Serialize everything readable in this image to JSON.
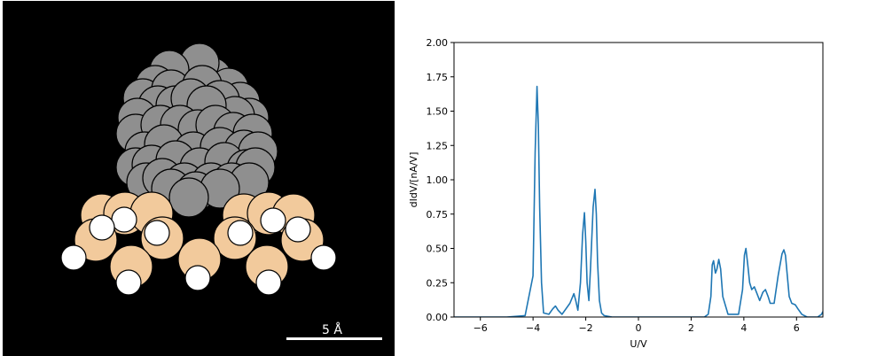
{
  "molecule": {
    "scale_label": "5 Å",
    "colors": {
      "carbon": "#8f8f8f",
      "nitrogen": "#f2ca9c",
      "hydrogen": "#ffffff",
      "background": "#000000",
      "outline": "#000000"
    }
  },
  "chart_data": {
    "type": "line",
    "title": "",
    "xlabel": "U/V",
    "ylabel": "dIdV/[nA/V]",
    "xlim": [
      -7,
      7
    ],
    "ylim": [
      0,
      2.0
    ],
    "xticks": [
      -6,
      -4,
      -2,
      0,
      2,
      4,
      6
    ],
    "xtick_labels": [
      "−6",
      "−4",
      "−2",
      "0",
      "2",
      "4",
      "6"
    ],
    "yticks": [
      0,
      0.25,
      0.5,
      0.75,
      1.0,
      1.25,
      1.5,
      1.75,
      2.0
    ],
    "ytick_labels": [
      "0.00",
      "0.25",
      "0.50",
      "0.75",
      "1.00",
      "1.25",
      "1.50",
      "1.75",
      "2.00"
    ],
    "grid": false,
    "line_color": "#1f77b4",
    "x": [
      -7.0,
      -6.0,
      -5.0,
      -4.3,
      -4.0,
      -3.92,
      -3.85,
      -3.8,
      -3.75,
      -3.68,
      -3.6,
      -3.4,
      -3.25,
      -3.15,
      -3.05,
      -2.9,
      -2.6,
      -2.45,
      -2.38,
      -2.3,
      -2.2,
      -2.12,
      -2.05,
      -2.0,
      -1.95,
      -1.88,
      -1.82,
      -1.72,
      -1.65,
      -1.6,
      -1.55,
      -1.48,
      -1.4,
      -1.3,
      -1.0,
      0.0,
      2.0,
      2.5,
      2.65,
      2.75,
      2.8,
      2.85,
      2.92,
      2.98,
      3.05,
      3.12,
      3.2,
      3.4,
      3.8,
      3.95,
      4.02,
      4.08,
      4.15,
      4.22,
      4.3,
      4.4,
      4.5,
      4.6,
      4.72,
      4.82,
      4.92,
      5.0,
      5.15,
      5.3,
      5.45,
      5.52,
      5.58,
      5.65,
      5.72,
      5.82,
      5.95,
      6.05,
      6.2,
      6.4,
      6.6,
      6.8,
      6.95,
      7.0
    ],
    "y": [
      0,
      0,
      0,
      0.01,
      0.3,
      1.2,
      1.68,
      1.4,
      0.8,
      0.25,
      0.03,
      0.02,
      0.06,
      0.08,
      0.05,
      0.02,
      0.1,
      0.17,
      0.12,
      0.05,
      0.25,
      0.6,
      0.76,
      0.55,
      0.25,
      0.12,
      0.35,
      0.8,
      0.93,
      0.75,
      0.4,
      0.12,
      0.03,
      0.01,
      0,
      0,
      0,
      0,
      0.02,
      0.15,
      0.38,
      0.41,
      0.32,
      0.35,
      0.42,
      0.35,
      0.15,
      0.02,
      0.02,
      0.2,
      0.45,
      0.5,
      0.38,
      0.25,
      0.2,
      0.22,
      0.17,
      0.12,
      0.18,
      0.2,
      0.15,
      0.1,
      0.1,
      0.3,
      0.46,
      0.49,
      0.45,
      0.3,
      0.15,
      0.1,
      0.09,
      0.06,
      0.02,
      0,
      0,
      0,
      0.02,
      0.04
    ]
  }
}
